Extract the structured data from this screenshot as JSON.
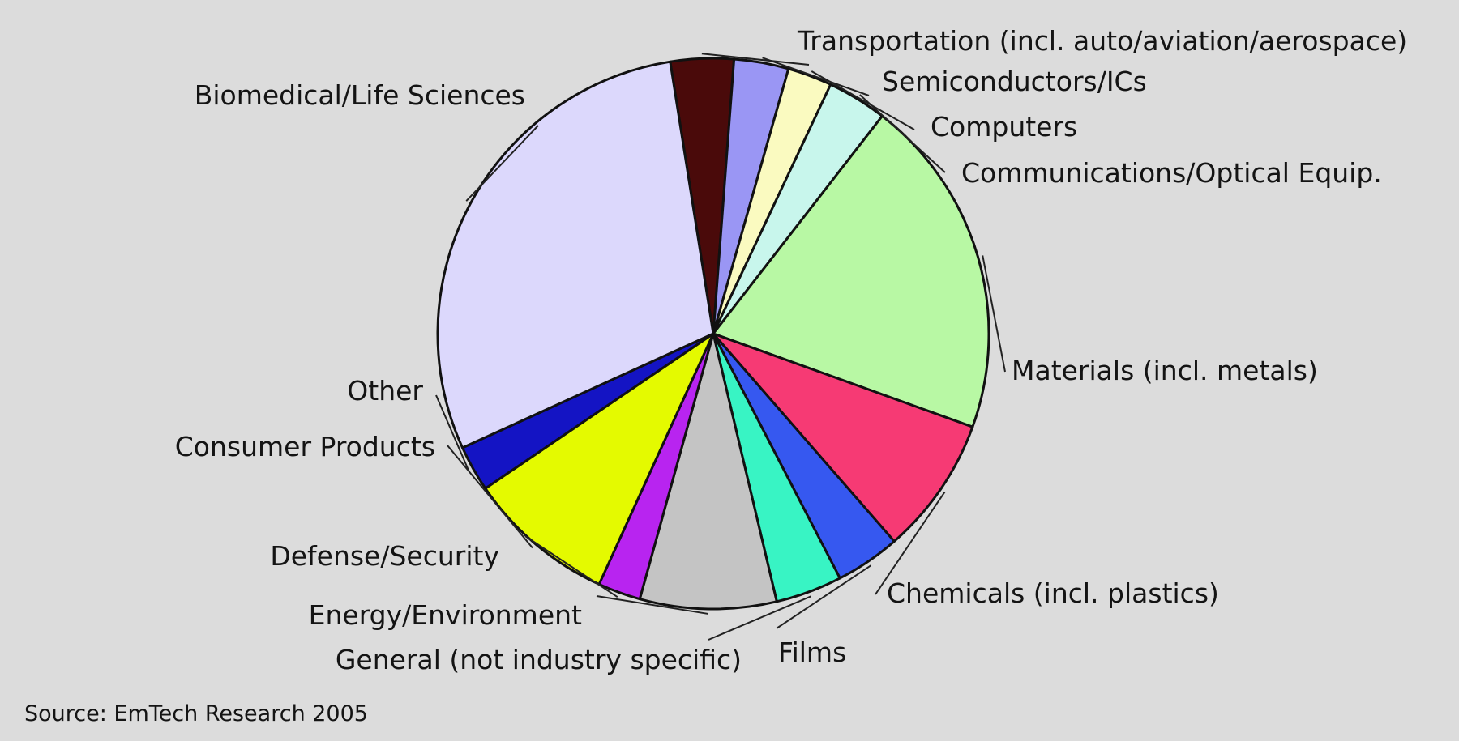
{
  "chart_data": {
    "type": "pie",
    "start_angle_deg": -9,
    "direction": "clockwise",
    "slices": [
      {
        "label": "Transportation (incl. auto/aviation/aerospace)",
        "value": 3.7,
        "color": "#4a0a0a"
      },
      {
        "label": "Semiconductors/ICs",
        "value": 3.2,
        "color": "#9a96f4"
      },
      {
        "label": "Computers",
        "value": 2.6,
        "color": "#fafac0"
      },
      {
        "label": "Communications/Optical Equip.",
        "value": 3.5,
        "color": "#c8f6ec"
      },
      {
        "label": "Materials (incl. metals)",
        "value": 20.0,
        "color": "#b8f8a4"
      },
      {
        "label": "Chemicals (incl. plastics)",
        "value": 8.1,
        "color": "#f63a74"
      },
      {
        "label": "Films",
        "value": 3.8,
        "color": "#3658f0"
      },
      {
        "label": "General (not industry specific)",
        "value": 3.9,
        "color": "#38f4c4"
      },
      {
        "label": "Energy/Environment",
        "value": 8.0,
        "color": "#c4c4c4"
      },
      {
        "label": "Defense/Security",
        "value": 2.5,
        "color": "#b824f0"
      },
      {
        "label": "Consumer Products",
        "value": 8.7,
        "color": "#e4fa00"
      },
      {
        "label": "Other",
        "value": 2.7,
        "color": "#1414c4"
      },
      {
        "label": "Biomedical/Life Sciences",
        "value": 29.3,
        "color": "#dcd8fc"
      }
    ],
    "source": "Source: EmTech Research 2005"
  }
}
